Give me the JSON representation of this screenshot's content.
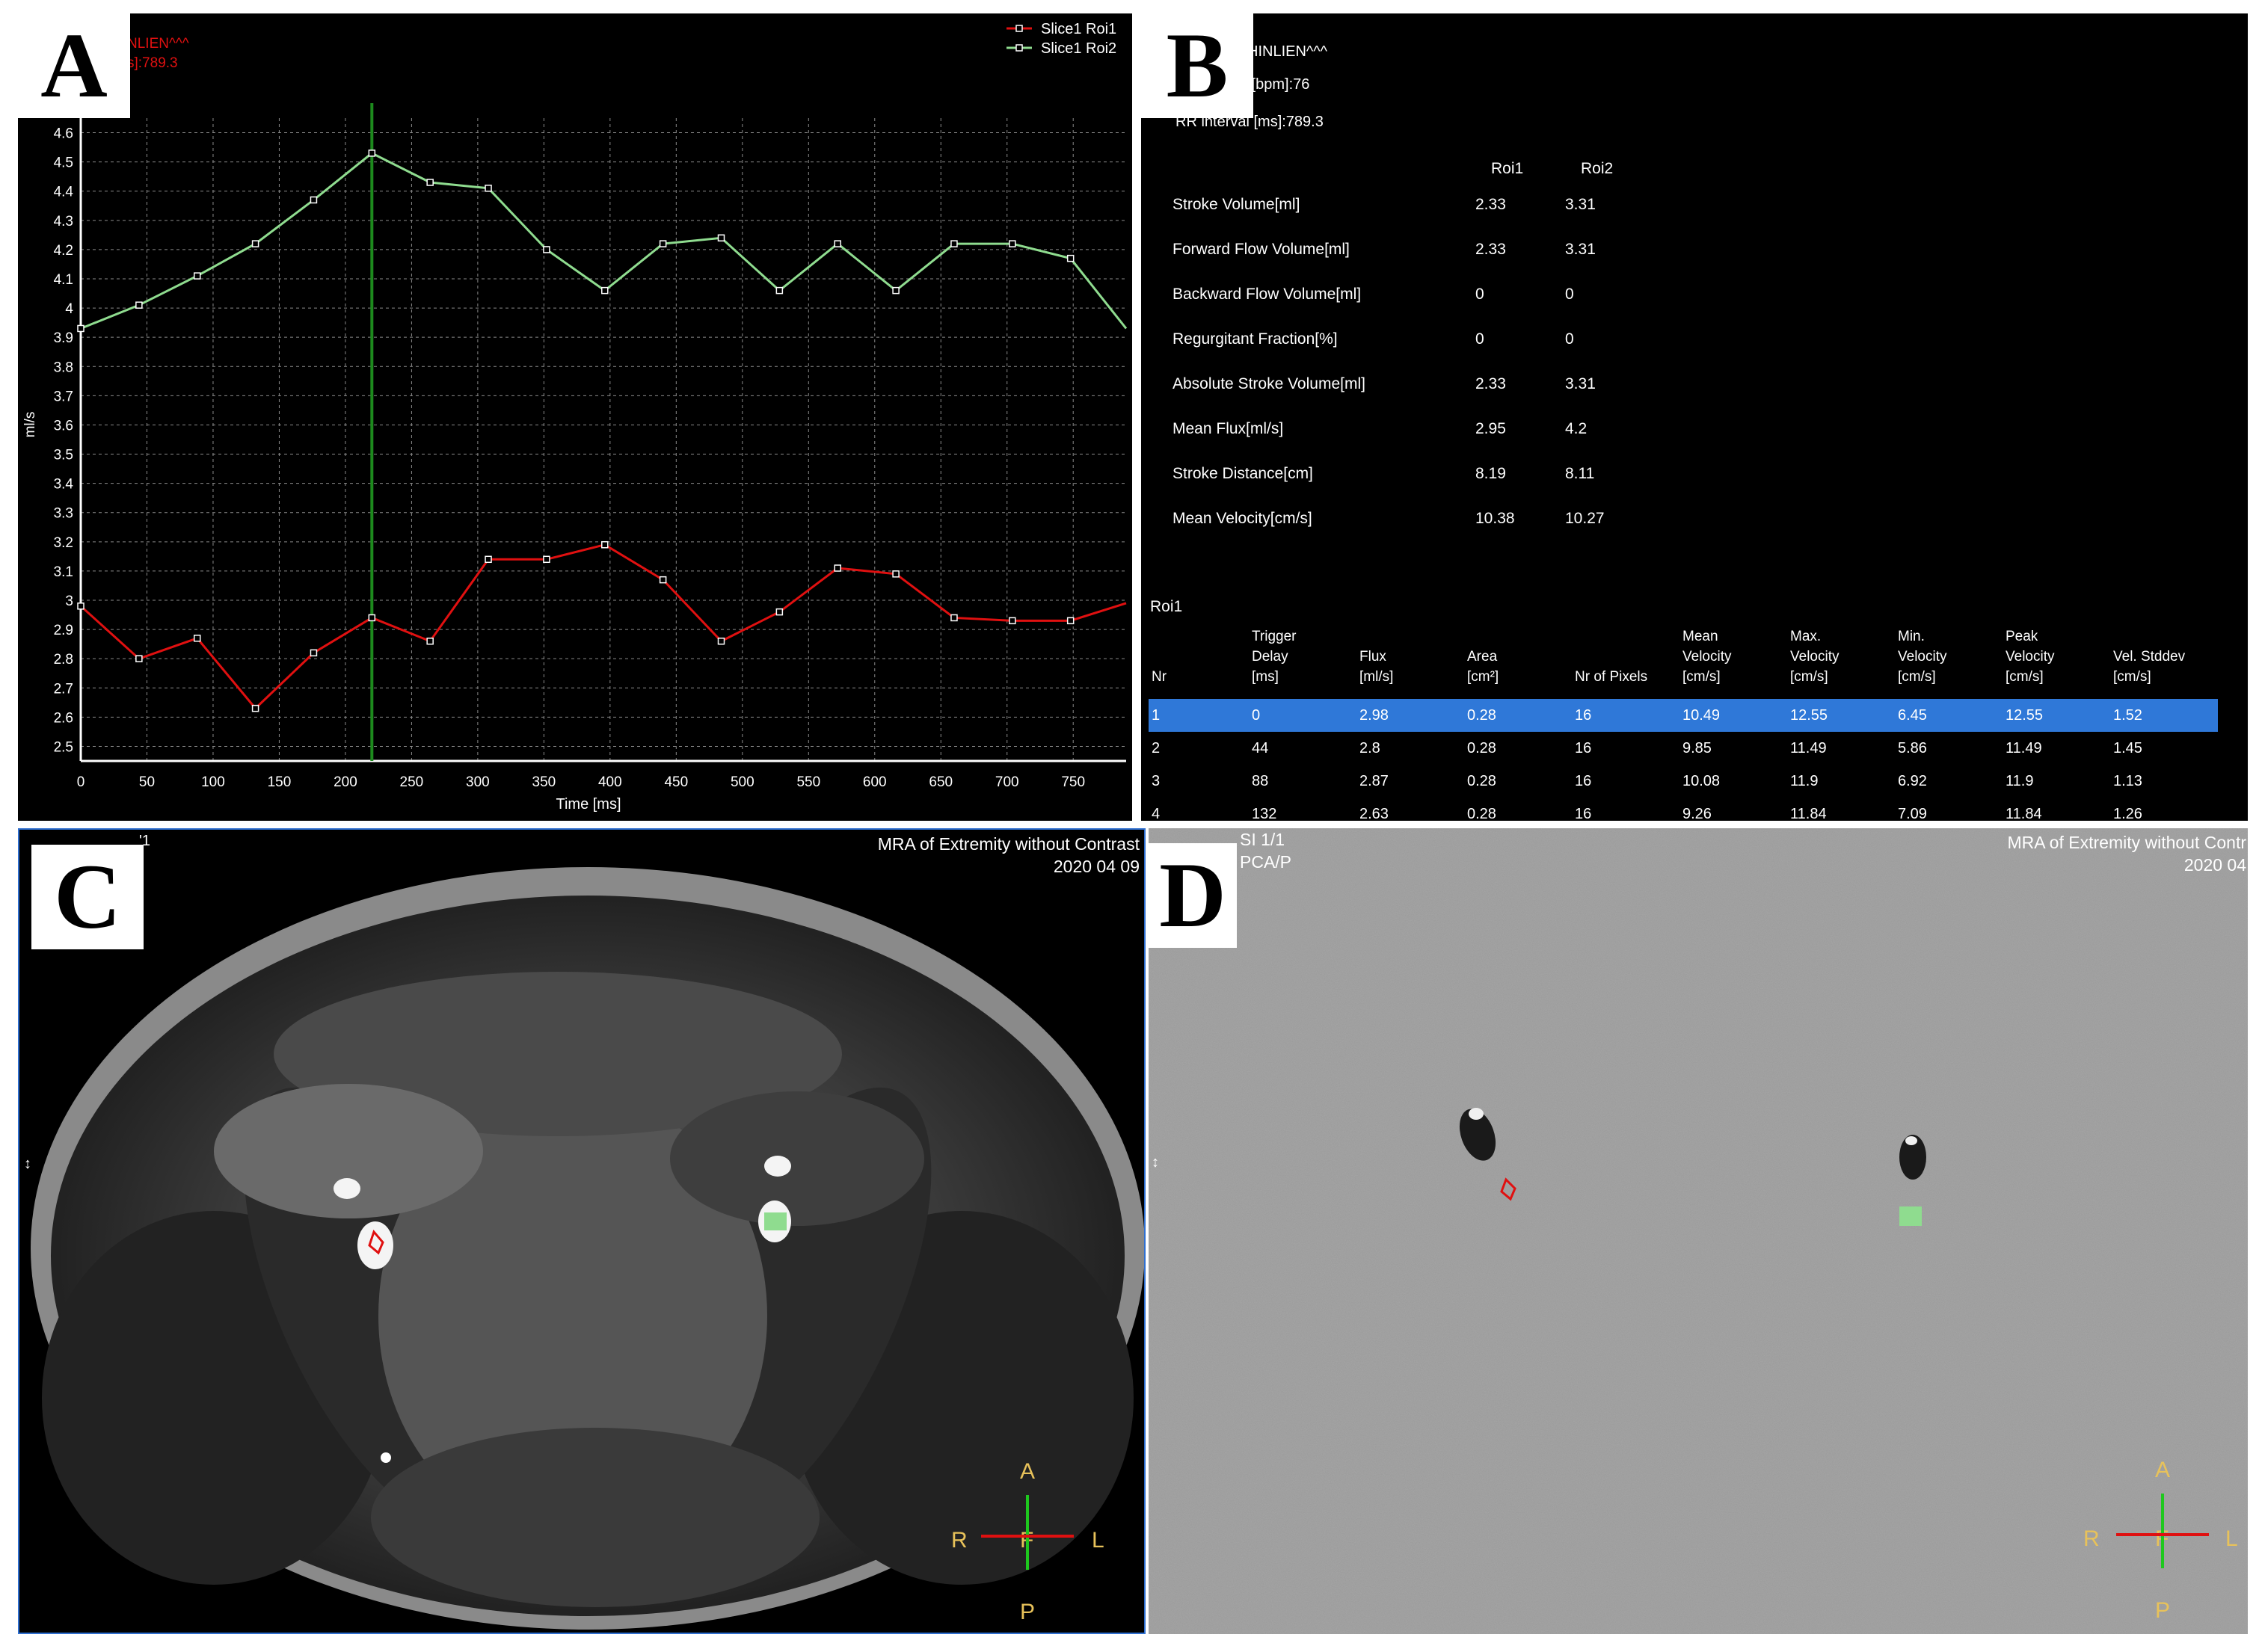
{
  "panels": {
    "A": {
      "letter": "A",
      "patient": "NLIEN^^^",
      "rr": "s]:789.3"
    },
    "B": {
      "letter": "B",
      "patient": "HINLIEN^^^",
      "hr": ":[bpm]:76",
      "rr": "RR interval [ms]:789.3"
    },
    "C": {
      "letter": "C",
      "corner": "'1",
      "study": "MRA of Extremity without Contrast",
      "date": "2020 04 09"
    },
    "D": {
      "letter": "D",
      "series": "SI 1/1",
      "type": "PCA/P",
      "study": "MRA of Extremity without Contr",
      "date": "2020 04"
    }
  },
  "chart_data": {
    "type": "line",
    "xlabel": "Time [ms]",
    "ylabel": "ml/s",
    "xlim": [
      0,
      790
    ],
    "ylim": [
      2.45,
      4.65
    ],
    "xticks": [
      "0",
      "50",
      "100",
      "150",
      "200",
      "250",
      "300",
      "350",
      "400",
      "450",
      "500",
      "550",
      "600",
      "650",
      "700",
      "750"
    ],
    "yticks": [
      "2.5",
      "2.6",
      "2.7",
      "2.8",
      "2.9",
      "3",
      "3.1",
      "3.2",
      "3.3",
      "3.4",
      "3.5",
      "3.6",
      "3.7",
      "3.8",
      "3.9",
      "4",
      "4.1",
      "4.2",
      "4.3",
      "4.4",
      "4.5",
      "4.6"
    ],
    "cursor_x": 220,
    "legend_position": "top-right",
    "series": [
      {
        "name": "Slice1 Roi1",
        "color": "#e01010",
        "x": [
          0,
          44,
          88,
          132,
          176,
          220,
          264,
          308,
          352,
          396,
          440,
          484,
          528,
          572,
          616,
          660,
          704,
          748,
          790
        ],
        "y": [
          2.98,
          2.8,
          2.87,
          2.63,
          2.82,
          2.94,
          2.86,
          3.14,
          3.14,
          3.19,
          3.07,
          2.86,
          2.96,
          3.11,
          3.09,
          2.94,
          2.93,
          2.93,
          2.99
        ]
      },
      {
        "name": "Slice1 Roi2",
        "color": "#8fdc8f",
        "x": [
          0,
          44,
          88,
          132,
          176,
          220,
          264,
          308,
          352,
          396,
          440,
          484,
          528,
          572,
          616,
          660,
          704,
          748,
          790
        ],
        "y": [
          3.93,
          4.01,
          4.11,
          4.22,
          4.37,
          4.53,
          4.43,
          4.41,
          4.2,
          4.06,
          4.22,
          4.24,
          4.06,
          4.22,
          4.06,
          4.22,
          4.22,
          4.17,
          3.93
        ]
      }
    ]
  },
  "summary": {
    "col1": "Roi1",
    "col2": "Roi2",
    "rows": [
      {
        "label": "Stroke Volume[ml]",
        "roi1": "2.33",
        "roi2": "3.31"
      },
      {
        "label": "Forward Flow Volume[ml]",
        "roi1": "2.33",
        "roi2": "3.31"
      },
      {
        "label": "Backward Flow Volume[ml]",
        "roi1": "0",
        "roi2": "0"
      },
      {
        "label": "Regurgitant Fraction[%]",
        "roi1": "0",
        "roi2": "0"
      },
      {
        "label": "Absolute Stroke Volume[ml]",
        "roi1": "2.33",
        "roi2": "3.31"
      },
      {
        "label": "Mean Flux[ml/s]",
        "roi1": "2.95",
        "roi2": "4.2"
      },
      {
        "label": "Stroke Distance[cm]",
        "roi1": "8.19",
        "roi2": "8.11"
      },
      {
        "label": "Mean Velocity[cm/s]",
        "roi1": "10.38",
        "roi2": "10.27"
      }
    ]
  },
  "phase_table": {
    "title": "Roi1",
    "headers": [
      "Nr",
      "Trigger\nDelay\n[ms]",
      "Flux\n[ml/s]",
      "Area\n[cm²]",
      "Nr of Pixels",
      "Mean\nVelocity\n[cm/s]",
      "Max.\nVelocity\n[cm/s]",
      "Min.\nVelocity\n[cm/s]",
      "Peak\nVelocity\n[cm/s]",
      "Vel. Stddev\n[cm/s]"
    ],
    "rows": [
      [
        "1",
        "0",
        "2.98",
        "0.28",
        "16",
        "10.49",
        "12.55",
        "6.45",
        "12.55",
        "1.52"
      ],
      [
        "2",
        "44",
        "2.8",
        "0.28",
        "16",
        "9.85",
        "11.49",
        "5.86",
        "11.49",
        "1.45"
      ],
      [
        "3",
        "88",
        "2.87",
        "0.28",
        "16",
        "10.08",
        "11.9",
        "6.92",
        "11.9",
        "1.13"
      ],
      [
        "4",
        "132",
        "2.63",
        "0.28",
        "16",
        "9.26",
        "11.84",
        "7.09",
        "11.84",
        "1.26"
      ]
    ],
    "selected_row": 0
  },
  "orientation": {
    "anterior": "A",
    "posterior": "P",
    "right": "R",
    "left": "L",
    "foot": "F"
  },
  "colors": {
    "selection": "#2f78d8",
    "roi1": "#e01010",
    "roi2": "#8fdc8f",
    "orientation": "#e8c25a",
    "cursor": "#1d8a1d"
  }
}
